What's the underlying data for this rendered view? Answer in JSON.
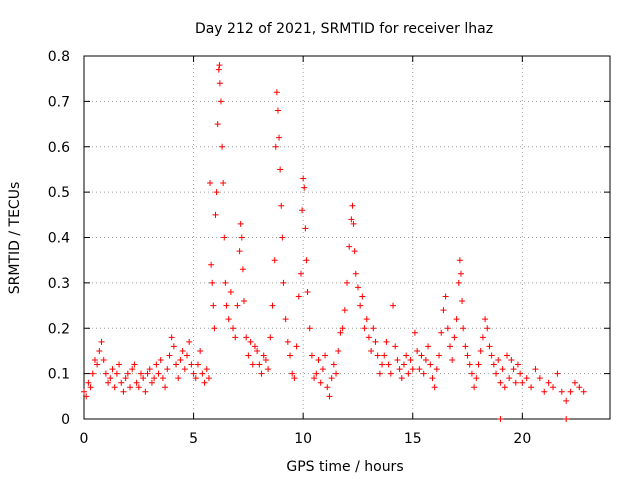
{
  "chart_data": {
    "type": "scatter",
    "title": "Day 212 of 2021, SRMTID for receiver lhaz",
    "xlabel": "GPS time / hours",
    "ylabel": "SRMTID / TECUs",
    "xlim": [
      0,
      24
    ],
    "ylim": [
      0,
      0.8
    ],
    "xticks": [
      0,
      5,
      10,
      15,
      20
    ],
    "yticks": [
      0,
      0.1,
      0.2,
      0.3,
      0.4,
      0.5,
      0.6,
      0.7,
      0.8
    ],
    "xtick_labels": [
      "0",
      "5",
      "10",
      "15",
      "20"
    ],
    "ytick_labels": [
      "0",
      "0.1",
      "0.2",
      "0.3",
      "0.4",
      "0.5",
      "0.6",
      "0.7",
      "0.8"
    ],
    "grid": true,
    "marker": "+",
    "color": "#ff0000",
    "series": [
      {
        "name": "SRMTID",
        "points": [
          [
            0.0,
            0.06
          ],
          [
            0.1,
            0.05
          ],
          [
            0.2,
            0.08
          ],
          [
            0.3,
            0.07
          ],
          [
            0.4,
            0.1
          ],
          [
            0.5,
            0.13
          ],
          [
            0.6,
            0.12
          ],
          [
            0.7,
            0.15
          ],
          [
            0.8,
            0.17
          ],
          [
            0.9,
            0.13
          ],
          [
            1.0,
            0.1
          ],
          [
            1.1,
            0.08
          ],
          [
            1.2,
            0.09
          ],
          [
            1.3,
            0.11
          ],
          [
            1.4,
            0.07
          ],
          [
            1.5,
            0.1
          ],
          [
            1.6,
            0.12
          ],
          [
            1.7,
            0.08
          ],
          [
            1.8,
            0.06
          ],
          [
            1.9,
            0.09
          ],
          [
            2.0,
            0.1
          ],
          [
            2.1,
            0.07
          ],
          [
            2.2,
            0.11
          ],
          [
            2.3,
            0.12
          ],
          [
            2.4,
            0.08
          ],
          [
            2.5,
            0.07
          ],
          [
            2.6,
            0.1
          ],
          [
            2.7,
            0.09
          ],
          [
            2.8,
            0.06
          ],
          [
            2.9,
            0.1
          ],
          [
            3.0,
            0.11
          ],
          [
            3.1,
            0.08
          ],
          [
            3.2,
            0.09
          ],
          [
            3.3,
            0.12
          ],
          [
            3.4,
            0.1
          ],
          [
            3.5,
            0.13
          ],
          [
            3.6,
            0.09
          ],
          [
            3.7,
            0.07
          ],
          [
            3.8,
            0.11
          ],
          [
            3.9,
            0.14
          ],
          [
            4.0,
            0.18
          ],
          [
            4.1,
            0.16
          ],
          [
            4.2,
            0.12
          ],
          [
            4.3,
            0.09
          ],
          [
            4.4,
            0.13
          ],
          [
            4.5,
            0.15
          ],
          [
            4.6,
            0.11
          ],
          [
            4.7,
            0.14
          ],
          [
            4.8,
            0.17
          ],
          [
            4.9,
            0.12
          ],
          [
            5.0,
            0.1
          ],
          [
            5.1,
            0.09
          ],
          [
            5.2,
            0.12
          ],
          [
            5.3,
            0.15
          ],
          [
            5.4,
            0.1
          ],
          [
            5.5,
            0.08
          ],
          [
            5.6,
            0.11
          ],
          [
            5.7,
            0.09
          ],
          [
            5.75,
            0.52
          ],
          [
            5.8,
            0.34
          ],
          [
            5.85,
            0.3
          ],
          [
            5.9,
            0.25
          ],
          [
            5.95,
            0.2
          ],
          [
            6.0,
            0.45
          ],
          [
            6.05,
            0.5
          ],
          [
            6.1,
            0.65
          ],
          [
            6.15,
            0.77
          ],
          [
            6.18,
            0.78
          ],
          [
            6.2,
            0.74
          ],
          [
            6.25,
            0.7
          ],
          [
            6.3,
            0.6
          ],
          [
            6.35,
            0.52
          ],
          [
            6.4,
            0.4
          ],
          [
            6.45,
            0.3
          ],
          [
            6.5,
            0.25
          ],
          [
            6.6,
            0.22
          ],
          [
            6.7,
            0.28
          ],
          [
            6.8,
            0.2
          ],
          [
            6.9,
            0.18
          ],
          [
            7.0,
            0.25
          ],
          [
            7.1,
            0.37
          ],
          [
            7.15,
            0.43
          ],
          [
            7.2,
            0.4
          ],
          [
            7.25,
            0.33
          ],
          [
            7.3,
            0.26
          ],
          [
            7.4,
            0.18
          ],
          [
            7.5,
            0.14
          ],
          [
            7.6,
            0.17
          ],
          [
            7.7,
            0.12
          ],
          [
            7.8,
            0.16
          ],
          [
            7.9,
            0.15
          ],
          [
            8.0,
            0.12
          ],
          [
            8.1,
            0.1
          ],
          [
            8.2,
            0.14
          ],
          [
            8.3,
            0.13
          ],
          [
            8.4,
            0.11
          ],
          [
            8.5,
            0.18
          ],
          [
            8.6,
            0.25
          ],
          [
            8.7,
            0.35
          ],
          [
            8.75,
            0.6
          ],
          [
            8.8,
            0.72
          ],
          [
            8.85,
            0.68
          ],
          [
            8.9,
            0.62
          ],
          [
            8.95,
            0.55
          ],
          [
            9.0,
            0.47
          ],
          [
            9.05,
            0.4
          ],
          [
            9.1,
            0.3
          ],
          [
            9.2,
            0.22
          ],
          [
            9.3,
            0.17
          ],
          [
            9.4,
            0.14
          ],
          [
            9.5,
            0.1
          ],
          [
            9.6,
            0.09
          ],
          [
            9.7,
            0.16
          ],
          [
            9.8,
            0.27
          ],
          [
            9.9,
            0.32
          ],
          [
            9.95,
            0.46
          ],
          [
            10.0,
            0.53
          ],
          [
            10.05,
            0.51
          ],
          [
            10.1,
            0.42
          ],
          [
            10.15,
            0.35
          ],
          [
            10.2,
            0.28
          ],
          [
            10.3,
            0.2
          ],
          [
            10.4,
            0.14
          ],
          [
            10.5,
            0.09
          ],
          [
            10.6,
            0.1
          ],
          [
            10.7,
            0.13
          ],
          [
            10.8,
            0.08
          ],
          [
            10.9,
            0.11
          ],
          [
            11.0,
            0.14
          ],
          [
            11.1,
            0.07
          ],
          [
            11.2,
            0.05
          ],
          [
            11.3,
            0.09
          ],
          [
            11.4,
            0.12
          ],
          [
            11.5,
            0.1
          ],
          [
            11.6,
            0.15
          ],
          [
            11.7,
            0.19
          ],
          [
            11.8,
            0.2
          ],
          [
            11.9,
            0.24
          ],
          [
            12.0,
            0.3
          ],
          [
            12.1,
            0.38
          ],
          [
            12.2,
            0.44
          ],
          [
            12.25,
            0.47
          ],
          [
            12.3,
            0.43
          ],
          [
            12.35,
            0.37
          ],
          [
            12.4,
            0.32
          ],
          [
            12.5,
            0.29
          ],
          [
            12.6,
            0.25
          ],
          [
            12.7,
            0.27
          ],
          [
            12.8,
            0.2
          ],
          [
            12.9,
            0.22
          ],
          [
            13.0,
            0.18
          ],
          [
            13.1,
            0.15
          ],
          [
            13.2,
            0.2
          ],
          [
            13.3,
            0.17
          ],
          [
            13.4,
            0.14
          ],
          [
            13.5,
            0.1
          ],
          [
            13.6,
            0.12
          ],
          [
            13.7,
            0.14
          ],
          [
            13.8,
            0.17
          ],
          [
            13.9,
            0.12
          ],
          [
            14.0,
            0.1
          ],
          [
            14.1,
            0.25
          ],
          [
            14.2,
            0.16
          ],
          [
            14.3,
            0.13
          ],
          [
            14.4,
            0.11
          ],
          [
            14.5,
            0.09
          ],
          [
            14.6,
            0.12
          ],
          [
            14.7,
            0.14
          ],
          [
            14.8,
            0.1
          ],
          [
            14.9,
            0.13
          ],
          [
            15.0,
            0.11
          ],
          [
            15.1,
            0.19
          ],
          [
            15.2,
            0.15
          ],
          [
            15.3,
            0.11
          ],
          [
            15.4,
            0.14
          ],
          [
            15.5,
            0.1
          ],
          [
            15.6,
            0.13
          ],
          [
            15.7,
            0.16
          ],
          [
            15.8,
            0.12
          ],
          [
            15.9,
            0.09
          ],
          [
            16.0,
            0.07
          ],
          [
            16.1,
            0.11
          ],
          [
            16.2,
            0.14
          ],
          [
            16.3,
            0.19
          ],
          [
            16.4,
            0.24
          ],
          [
            16.5,
            0.27
          ],
          [
            16.6,
            0.2
          ],
          [
            16.7,
            0.16
          ],
          [
            16.8,
            0.13
          ],
          [
            16.9,
            0.18
          ],
          [
            17.0,
            0.22
          ],
          [
            17.1,
            0.3
          ],
          [
            17.15,
            0.35
          ],
          [
            17.2,
            0.32
          ],
          [
            17.25,
            0.26
          ],
          [
            17.3,
            0.2
          ],
          [
            17.4,
            0.16
          ],
          [
            17.5,
            0.14
          ],
          [
            17.6,
            0.12
          ],
          [
            17.7,
            0.1
          ],
          [
            17.8,
            0.07
          ],
          [
            17.9,
            0.09
          ],
          [
            18.0,
            0.12
          ],
          [
            18.1,
            0.15
          ],
          [
            18.2,
            0.18
          ],
          [
            18.3,
            0.22
          ],
          [
            18.4,
            0.2
          ],
          [
            18.5,
            0.16
          ],
          [
            18.6,
            0.14
          ],
          [
            18.7,
            0.12
          ],
          [
            18.8,
            0.1
          ],
          [
            18.9,
            0.13
          ],
          [
            19.0,
            0.08
          ],
          [
            19.1,
            0.11
          ],
          [
            19.2,
            0.07
          ],
          [
            19.3,
            0.14
          ],
          [
            19.4,
            0.09
          ],
          [
            19.5,
            0.13
          ],
          [
            19.6,
            0.11
          ],
          [
            19.7,
            0.08
          ],
          [
            19.8,
            0.12
          ],
          [
            19.9,
            0.1
          ],
          [
            20.0,
            0.08
          ],
          [
            20.2,
            0.09
          ],
          [
            20.4,
            0.07
          ],
          [
            20.6,
            0.11
          ],
          [
            20.8,
            0.09
          ],
          [
            21.0,
            0.06
          ],
          [
            21.2,
            0.08
          ],
          [
            21.4,
            0.07
          ],
          [
            21.6,
            0.1
          ],
          [
            21.8,
            0.06
          ],
          [
            22.0,
            0.04
          ],
          [
            22.2,
            0.06
          ],
          [
            22.4,
            0.08
          ],
          [
            22.6,
            0.07
          ],
          [
            22.8,
            0.06
          ],
          [
            19.0,
            0.0
          ],
          [
            22.0,
            0.0
          ]
        ]
      }
    ]
  }
}
